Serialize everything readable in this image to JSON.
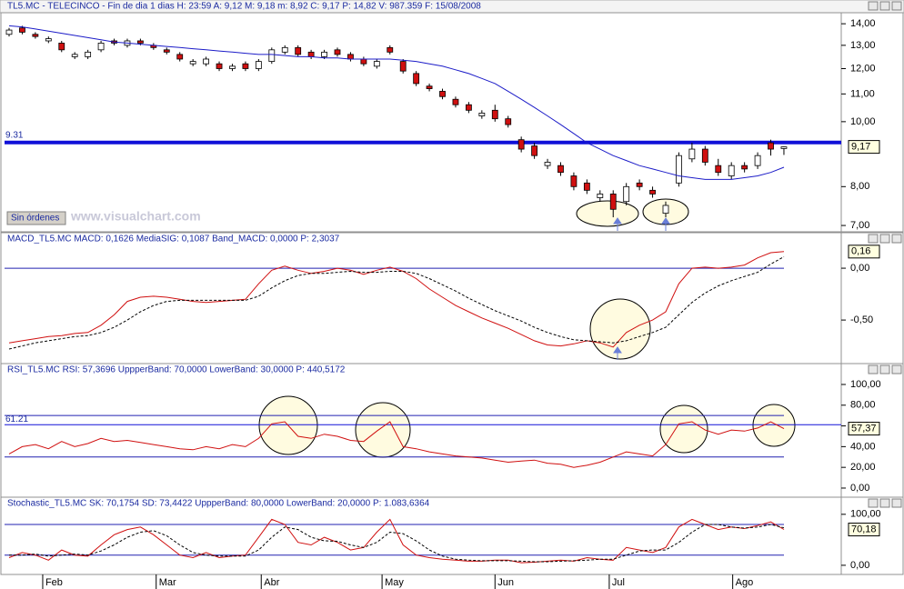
{
  "toolbar": {
    "button": "Sin órdenes",
    "watermark": "www.visualchart.com"
  },
  "chart_data": [
    {
      "type": "candlestick",
      "title": "TL5.MC - TELECINCO - Fin de dia 1 dias H: 23:59  A: 9,12  M: 9,18  m: 8,92  C: 9,17  P: 14,82  V: 987.359  F: 15/08/2008",
      "log": true,
      "ylim": [
        6.85,
        14.45
      ],
      "yticks": [
        {
          "value": 7,
          "label": "7,00"
        },
        {
          "value": 8,
          "label": "8,00"
        },
        {
          "value": 10,
          "label": "10,00"
        },
        {
          "value": 11,
          "label": "11,00"
        },
        {
          "value": 12,
          "label": "12,00"
        },
        {
          "value": 13,
          "label": "13,00"
        },
        {
          "value": 14,
          "label": "14,00"
        }
      ],
      "colors": {
        "up": "#ffffff",
        "down": "#d01010"
      },
      "open": [
        13.5,
        13.8,
        13.5,
        13.2,
        13.1,
        12.5,
        12.5,
        12.8,
        13.2,
        13.0,
        13.2,
        13.0,
        12.8,
        12.6,
        12.2,
        12.2,
        12.2,
        12.0,
        12.2,
        12.0,
        12.3,
        12.7,
        12.9,
        12.7,
        12.5,
        12.8,
        12.6,
        12.4,
        12.1,
        12.9,
        12.3,
        11.8,
        11.3,
        11.1,
        10.8,
        10.6,
        10.2,
        10.4,
        10.1,
        9.4,
        9.2,
        8.6,
        8.6,
        8.3,
        8.1,
        7.7,
        7.8,
        7.6,
        8.1,
        7.9,
        7.3,
        8.1,
        8.8,
        9.1,
        8.6,
        8.3,
        8.6,
        8.6,
        9.3,
        9.12
      ],
      "high": [
        13.8,
        13.9,
        13.6,
        13.4,
        13.2,
        12.7,
        12.8,
        13.2,
        13.3,
        13.3,
        13.3,
        13.1,
        12.9,
        12.7,
        12.4,
        12.5,
        12.3,
        12.2,
        12.3,
        12.4,
        12.9,
        13.0,
        13.0,
        12.8,
        12.8,
        12.9,
        12.7,
        12.5,
        12.4,
        13.0,
        12.4,
        11.9,
        11.4,
        11.2,
        10.9,
        10.7,
        10.4,
        10.6,
        10.2,
        9.5,
        9.3,
        8.8,
        8.7,
        8.4,
        8.2,
        7.9,
        7.9,
        8.1,
        8.2,
        8.0,
        7.6,
        9.0,
        9.3,
        9.2,
        8.8,
        8.7,
        8.7,
        9.0,
        9.4,
        9.18
      ],
      "low": [
        13.4,
        13.5,
        13.3,
        13.1,
        12.7,
        12.4,
        12.4,
        12.7,
        13.0,
        12.9,
        13.0,
        12.8,
        12.6,
        12.3,
        12.1,
        12.1,
        11.9,
        11.9,
        11.9,
        11.9,
        12.2,
        12.6,
        12.5,
        12.4,
        12.4,
        12.5,
        12.3,
        12.1,
        12.0,
        12.6,
        11.8,
        11.3,
        11.1,
        10.8,
        10.5,
        10.3,
        10.1,
        10.0,
        9.8,
        9.0,
        8.8,
        8.5,
        8.3,
        7.9,
        7.8,
        7.6,
        7.2,
        7.5,
        7.9,
        7.7,
        7.2,
        8.0,
        8.7,
        8.6,
        8.3,
        8.2,
        8.4,
        8.5,
        8.9,
        8.92
      ],
      "close": [
        13.7,
        13.6,
        13.4,
        13.3,
        12.8,
        12.6,
        12.7,
        13.1,
        13.1,
        13.2,
        13.1,
        12.9,
        12.7,
        12.4,
        12.3,
        12.4,
        12.0,
        12.1,
        12.0,
        12.3,
        12.8,
        12.9,
        12.6,
        12.5,
        12.7,
        12.6,
        12.4,
        12.2,
        12.3,
        12.7,
        11.9,
        11.4,
        11.2,
        10.9,
        10.6,
        10.4,
        10.3,
        10.1,
        9.9,
        9.1,
        8.9,
        8.7,
        8.4,
        8.0,
        7.9,
        7.8,
        7.4,
        8.0,
        8.0,
        7.8,
        7.5,
        8.9,
        9.1,
        8.7,
        8.4,
        8.6,
        8.5,
        8.9,
        9.1,
        9.17
      ],
      "series": [
        {
          "color": "#1c1cc8",
          "values": [
            13.9,
            13.85,
            13.75,
            13.65,
            13.55,
            13.45,
            13.35,
            13.25,
            13.15,
            13.1,
            13.05,
            13.0,
            12.95,
            12.9,
            12.85,
            12.8,
            12.75,
            12.7,
            12.65,
            12.6,
            12.6,
            12.55,
            12.5,
            12.5,
            12.45,
            12.45,
            12.4,
            12.4,
            12.4,
            12.4,
            12.35,
            12.3,
            12.2,
            12.1,
            11.95,
            11.8,
            11.6,
            11.4,
            11.1,
            10.8,
            10.5,
            10.2,
            9.9,
            9.6,
            9.3,
            9.1,
            8.9,
            8.75,
            8.6,
            8.5,
            8.4,
            8.3,
            8.25,
            8.2,
            8.2,
            8.2,
            8.25,
            8.3,
            8.4,
            8.55
          ]
        }
      ],
      "level": {
        "value": 9.31,
        "label": "9.31",
        "color": "#1010d8"
      },
      "current": {
        "value": 9.17,
        "label": "9,17"
      }
    },
    {
      "type": "line",
      "title": "MACD_TL5.MC  MACD: 0,1626  MediaSIG: 0,1087  Band_MACD: 0,0000  P: 2,3037",
      "ylim": [
        -0.92,
        0.325
      ],
      "yticks": [
        {
          "value": -0.5,
          "label": "-0,50"
        },
        {
          "value": 0,
          "label": "0,00"
        }
      ],
      "bands": [
        0
      ],
      "series": [
        {
          "color": "#d01010",
          "dash": false,
          "values": [
            -0.72,
            -0.7,
            -0.68,
            -0.66,
            -0.65,
            -0.63,
            -0.62,
            -0.55,
            -0.45,
            -0.32,
            -0.28,
            -0.27,
            -0.28,
            -0.3,
            -0.32,
            -0.33,
            -0.32,
            -0.31,
            -0.3,
            -0.15,
            -0.02,
            0.02,
            -0.02,
            -0.05,
            -0.03,
            0.0,
            -0.02,
            -0.06,
            -0.02,
            0.01,
            -0.03,
            -0.1,
            -0.2,
            -0.28,
            -0.36,
            -0.42,
            -0.48,
            -0.53,
            -0.58,
            -0.64,
            -0.7,
            -0.74,
            -0.75,
            -0.73,
            -0.7,
            -0.72,
            -0.76,
            -0.62,
            -0.55,
            -0.5,
            -0.42,
            -0.15,
            0.0,
            0.01,
            0.0,
            0.01,
            0.03,
            0.1,
            0.15,
            0.16
          ]
        },
        {
          "color": "#000000",
          "dash": true,
          "values": [
            -0.78,
            -0.75,
            -0.72,
            -0.7,
            -0.68,
            -0.66,
            -0.65,
            -0.62,
            -0.57,
            -0.5,
            -0.42,
            -0.36,
            -0.32,
            -0.31,
            -0.31,
            -0.31,
            -0.31,
            -0.31,
            -0.31,
            -0.27,
            -0.19,
            -0.12,
            -0.07,
            -0.05,
            -0.05,
            -0.04,
            -0.03,
            -0.04,
            -0.04,
            -0.03,
            -0.03,
            -0.05,
            -0.1,
            -0.16,
            -0.22,
            -0.29,
            -0.35,
            -0.41,
            -0.46,
            -0.51,
            -0.57,
            -0.62,
            -0.66,
            -0.69,
            -0.7,
            -0.71,
            -0.72,
            -0.7,
            -0.66,
            -0.62,
            -0.57,
            -0.45,
            -0.33,
            -0.24,
            -0.17,
            -0.12,
            -0.08,
            -0.04,
            0.04,
            0.11
          ]
        }
      ],
      "current": {
        "value": 0.16,
        "label": "0,16"
      }
    },
    {
      "type": "line",
      "title": "RSI_TL5.MC  RSI: 57,3696  UppperBand: 70,0000  LowerBand: 30,0000  P: 440,5172",
      "ylim": [
        -8.8,
        118.4
      ],
      "yticks": [
        {
          "value": 0,
          "label": "0,00"
        },
        {
          "value": 20,
          "label": "20,00"
        },
        {
          "value": 40,
          "label": "40,00"
        },
        {
          "value": 60,
          "label": "60,00"
        },
        {
          "value": 80,
          "label": "80,00"
        },
        {
          "value": 100,
          "label": "100,00"
        }
      ],
      "bands": [
        70,
        30
      ],
      "level": {
        "value": 61.21,
        "label": "61.21",
        "color": "#1010d8"
      },
      "series": [
        {
          "color": "#d01010",
          "dash": false,
          "values": [
            33,
            40,
            42,
            38,
            45,
            40,
            43,
            48,
            45,
            46,
            44,
            42,
            40,
            38,
            37,
            40,
            38,
            42,
            40,
            48,
            62,
            64,
            50,
            48,
            52,
            50,
            46,
            45,
            55,
            64,
            40,
            38,
            35,
            33,
            31,
            30,
            29,
            27,
            25,
            26,
            27,
            24,
            23,
            20,
            22,
            25,
            30,
            35,
            33,
            31,
            42,
            62,
            64,
            56,
            52,
            56,
            55,
            58,
            64,
            57.37
          ]
        }
      ],
      "current": {
        "value": 57.37,
        "label": "57,37"
      }
    },
    {
      "type": "line",
      "title": "Stochastic_TL5.MC  SK: 70,1754  SD: 73,4422  UppperBand: 80,0000  LowerBand: 20,0000  P: 1.083,6364",
      "ylim": [
        -18,
        130
      ],
      "yticks": [
        {
          "value": 0,
          "label": "0,00"
        },
        {
          "value": 100,
          "label": "100,00"
        }
      ],
      "bands": [
        80,
        20
      ],
      "series": [
        {
          "color": "#d01010",
          "dash": false,
          "values": [
            15,
            25,
            20,
            10,
            30,
            20,
            18,
            40,
            60,
            70,
            75,
            60,
            40,
            20,
            15,
            25,
            15,
            18,
            20,
            55,
            90,
            80,
            45,
            40,
            55,
            45,
            30,
            35,
            65,
            90,
            40,
            20,
            15,
            12,
            10,
            8,
            8,
            10,
            10,
            5,
            6,
            8,
            10,
            8,
            15,
            12,
            10,
            35,
            30,
            25,
            35,
            75,
            90,
            80,
            70,
            75,
            72,
            78,
            85,
            70.18
          ]
        },
        {
          "color": "#000000",
          "dash": true,
          "values": [
            20,
            20,
            22,
            18,
            20,
            22,
            20,
            28,
            40,
            55,
            65,
            68,
            58,
            40,
            25,
            20,
            18,
            18,
            18,
            30,
            55,
            75,
            70,
            55,
            48,
            47,
            40,
            35,
            45,
            65,
            62,
            48,
            30,
            18,
            12,
            10,
            9,
            9,
            9,
            8,
            7,
            7,
            8,
            9,
            10,
            12,
            12,
            20,
            28,
            30,
            30,
            45,
            65,
            80,
            80,
            75,
            73,
            75,
            80,
            73.44
          ]
        }
      ],
      "xticks": [
        {
          "value": 2.56,
          "label": "Feb"
        },
        {
          "value": 11.2,
          "label": "Mar"
        },
        {
          "value": 19.2,
          "label": "Abr"
        },
        {
          "value": 28.4,
          "label": "May"
        },
        {
          "value": 37.0,
          "label": "Jun"
        },
        {
          "value": 45.7,
          "label": "Jul"
        },
        {
          "value": 55.1,
          "label": "Ago"
        }
      ],
      "current": {
        "value": 70.18,
        "label": "70,18"
      }
    }
  ]
}
